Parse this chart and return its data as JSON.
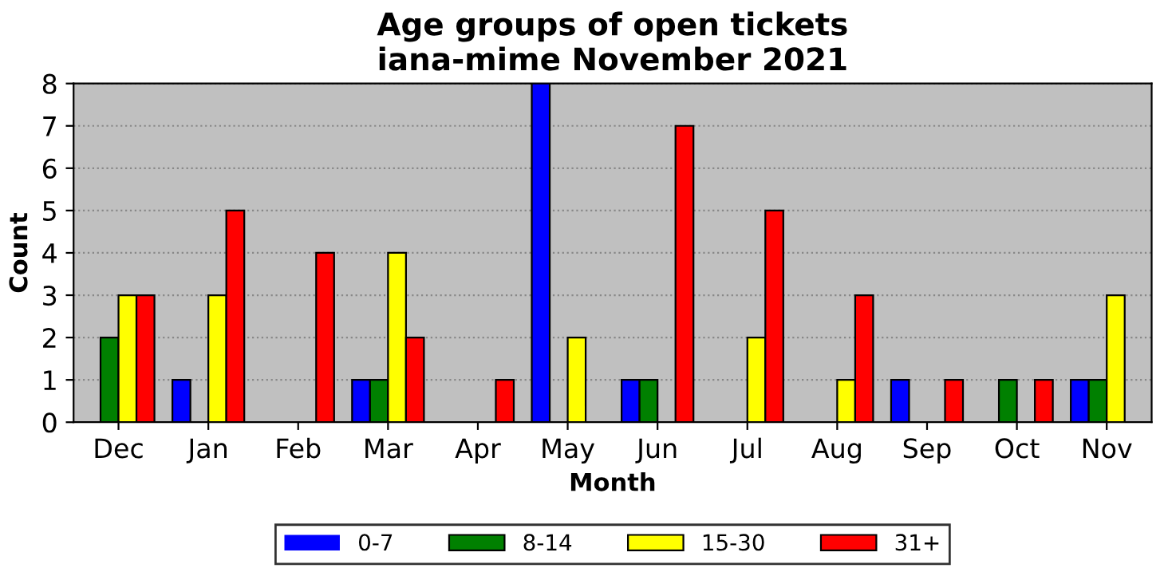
{
  "chart_data": {
    "type": "bar",
    "title": "Age groups of open tickets\niana-mime November 2021",
    "xlabel": "Month",
    "ylabel": "Count",
    "categories": [
      "Dec",
      "Jan",
      "Feb",
      "Mar",
      "Apr",
      "May",
      "Jun",
      "Jul",
      "Aug",
      "Sep",
      "Oct",
      "Nov"
    ],
    "series": [
      {
        "name": "0-7",
        "color": "#0000ff",
        "values": [
          0,
          1,
          0,
          1,
          0,
          8,
          1,
          0,
          0,
          1,
          0,
          1
        ]
      },
      {
        "name": "8-14",
        "color": "#008000",
        "values": [
          2,
          0,
          0,
          1,
          0,
          0,
          1,
          0,
          0,
          0,
          1,
          1
        ]
      },
      {
        "name": "15-30",
        "color": "#ffff00",
        "values": [
          3,
          3,
          0,
          4,
          0,
          2,
          0,
          2,
          1,
          0,
          0,
          3
        ]
      },
      {
        "name": "31+",
        "color": "#ff0000",
        "values": [
          3,
          5,
          4,
          2,
          1,
          0,
          7,
          5,
          3,
          1,
          1,
          0
        ]
      }
    ],
    "ylim": [
      0,
      8
    ],
    "yticks": [
      0,
      1,
      2,
      3,
      4,
      5,
      6,
      7,
      8
    ],
    "grid": "y",
    "legend": "bottom"
  }
}
